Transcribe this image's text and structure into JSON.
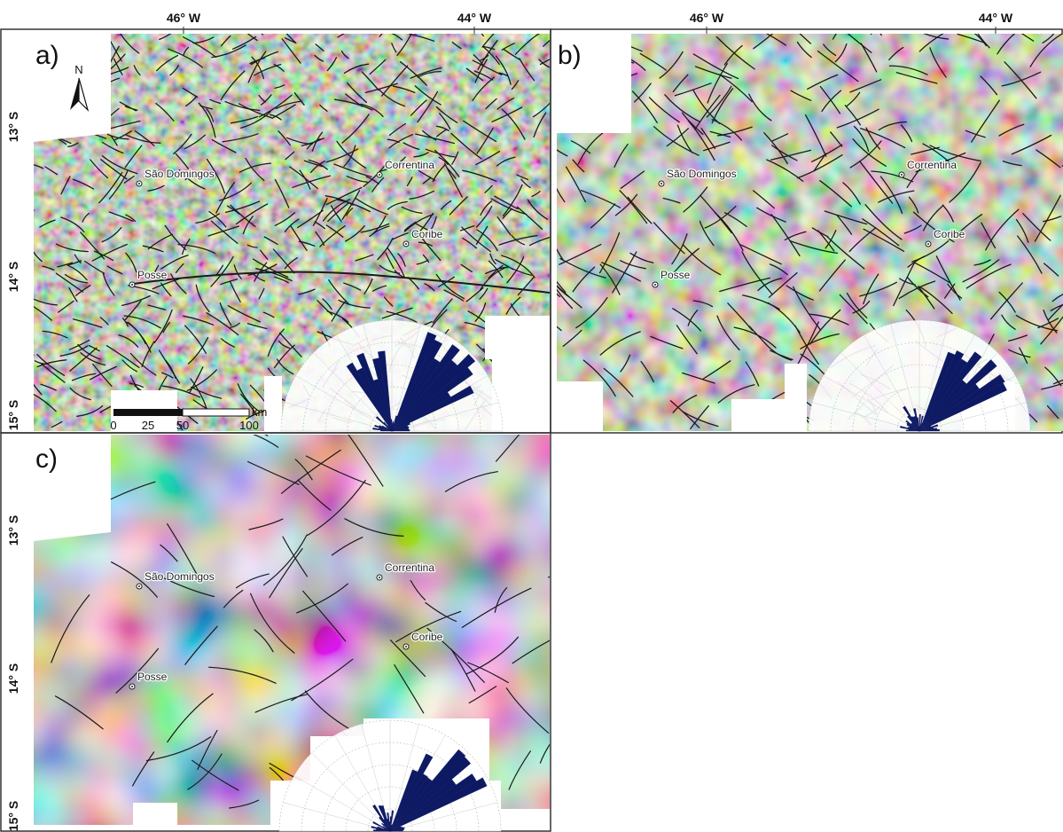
{
  "figure": {
    "top_axis_labels": [
      "46° W",
      "44° W"
    ],
    "left_axis_labels": [
      "13° S",
      "14° S",
      "15° S"
    ],
    "colors": {
      "rose_fill": "#0d1a63",
      "lineament": "#1a1a1a",
      "frame": "#333333"
    }
  },
  "panels": [
    {
      "id": "a",
      "letter": "a)",
      "has_north_arrow": true,
      "has_scale_bar": true
    },
    {
      "id": "b",
      "letter": "b)",
      "has_north_arrow": false,
      "has_scale_bar": false
    },
    {
      "id": "c",
      "letter": "c)",
      "has_north_arrow": false,
      "has_scale_bar": false
    }
  ],
  "cities": [
    {
      "name": "São Domingos"
    },
    {
      "name": "Correntina"
    },
    {
      "name": "Coribe"
    },
    {
      "name": "Posse"
    }
  ],
  "north_arrow": {
    "label": "N",
    "icon": "north-arrow-icon"
  },
  "scale_bar": {
    "unit": "km",
    "ticks": [
      "0",
      "25",
      "50",
      "100"
    ]
  }
}
